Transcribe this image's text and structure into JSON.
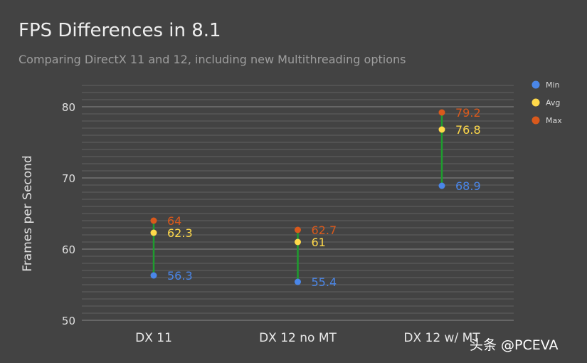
{
  "chart_data": {
    "type": "range-dot",
    "title": "FPS Differences in 8.1",
    "subtitle": "Comparing DirectX 11 and 12, including new Multithreading options",
    "xlabel": "",
    "ylabel": "Frames per Second",
    "categories": [
      "DX 11",
      "DX 12 no MT",
      "DX 12 w/ MT"
    ],
    "series": [
      {
        "name": "Min",
        "color": "#4a86e8",
        "values": [
          56.3,
          55.4,
          68.9
        ],
        "labels": [
          "56.3",
          "55.4",
          "68.9"
        ]
      },
      {
        "name": "Avg",
        "color": "#ffd94a",
        "values": [
          62.3,
          61,
          76.8
        ],
        "labels": [
          "62.3",
          "61",
          "76.8"
        ]
      },
      {
        "name": "Max",
        "color": "#d9591c",
        "values": [
          64,
          62.7,
          79.2
        ],
        "labels": [
          "64",
          "62.7",
          "79.2"
        ]
      }
    ],
    "range_line_color": "#1e9c2e",
    "ylim": [
      50,
      83
    ],
    "yticks": [
      50,
      60,
      70,
      80
    ],
    "ytick_labels": [
      "50",
      "60",
      "70",
      "80"
    ],
    "minor_grid_step": 1,
    "legend_position": "top-right"
  },
  "watermark": "头条 @PCEVA"
}
